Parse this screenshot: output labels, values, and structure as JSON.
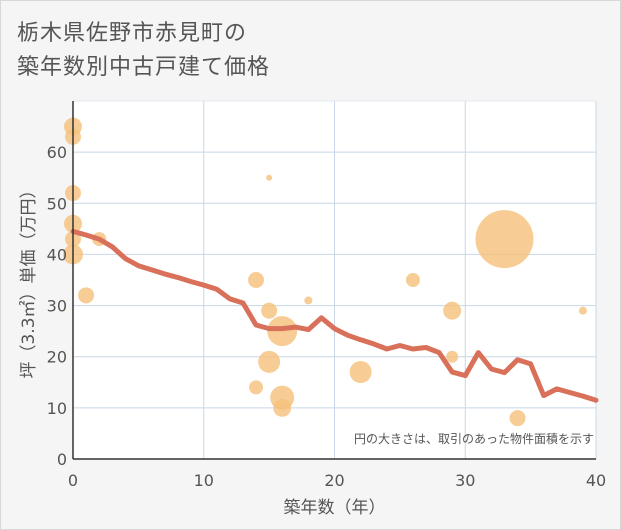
{
  "title_line1": "栃木県佐野市赤見町の",
  "title_line2": "築年数別中古戸建て価格",
  "chart_data": {
    "type": "scatter",
    "title": "栃木県佐野市赤見町の築年数別中古戸建て価格",
    "xlabel": "築年数（年）",
    "ylabel": "坪（3.3㎡）単価（万円）",
    "xlim": [
      0,
      40
    ],
    "ylim": [
      0,
      70
    ],
    "xticks": [
      "0",
      "10",
      "20",
      "30",
      "40"
    ],
    "yticks": [
      "0",
      "10",
      "20",
      "30",
      "40",
      "50",
      "60"
    ],
    "grid": true,
    "note": "円の大きさは、取引のあった物件面積を示す",
    "colors": {
      "bubble": "#f5c07a",
      "line": "#d9705a",
      "grid": "#c8d7e8",
      "plot_bg": "#ffffff"
    },
    "points": [
      {
        "x": 0,
        "y": 65,
        "size": 9
      },
      {
        "x": 0,
        "y": 63,
        "size": 8
      },
      {
        "x": 0,
        "y": 52,
        "size": 8
      },
      {
        "x": 0,
        "y": 46,
        "size": 9
      },
      {
        "x": 0,
        "y": 43,
        "size": 8
      },
      {
        "x": 0,
        "y": 40,
        "size": 10
      },
      {
        "x": 1,
        "y": 32,
        "size": 8
      },
      {
        "x": 2,
        "y": 43,
        "size": 7
      },
      {
        "x": 14,
        "y": 35,
        "size": 8
      },
      {
        "x": 15,
        "y": 55,
        "size": 3
      },
      {
        "x": 15,
        "y": 29,
        "size": 8
      },
      {
        "x": 16,
        "y": 25,
        "size": 15
      },
      {
        "x": 15,
        "y": 19,
        "size": 11
      },
      {
        "x": 14,
        "y": 14,
        "size": 7
      },
      {
        "x": 16,
        "y": 12,
        "size": 12
      },
      {
        "x": 16,
        "y": 10,
        "size": 9
      },
      {
        "x": 18,
        "y": 31,
        "size": 4
      },
      {
        "x": 22,
        "y": 17,
        "size": 11
      },
      {
        "x": 26,
        "y": 35,
        "size": 7
      },
      {
        "x": 29,
        "y": 29,
        "size": 9
      },
      {
        "x": 29,
        "y": 20,
        "size": 6
      },
      {
        "x": 33,
        "y": 43,
        "size": 29
      },
      {
        "x": 34,
        "y": 8,
        "size": 8
      },
      {
        "x": 39,
        "y": 29,
        "size": 4
      }
    ],
    "trend": {
      "x": [
        0,
        1,
        2,
        3,
        4,
        5,
        6,
        7,
        8,
        9,
        10,
        11,
        12,
        13,
        14,
        15,
        16,
        17,
        18,
        19,
        20,
        21,
        22,
        23,
        24,
        25,
        26,
        27,
        28,
        29,
        30,
        31,
        32,
        33,
        34,
        35,
        36,
        37,
        38,
        39,
        40
      ],
      "y": [
        44.5,
        43.8,
        43,
        41.5,
        39.2,
        37.8,
        37,
        36.2,
        35.5,
        34.7,
        34,
        33.2,
        31.3,
        30.5,
        26.2,
        25.5,
        25.5,
        25.8,
        25.3,
        27.6,
        25.5,
        24.2,
        23.3,
        22.5,
        21.5,
        22.2,
        21.5,
        21.8,
        20.8,
        17,
        16.3,
        20.8,
        17.6,
        16.9,
        19.4,
        18.6,
        12.4,
        13.7,
        13,
        12.3,
        11.5
      ]
    }
  }
}
